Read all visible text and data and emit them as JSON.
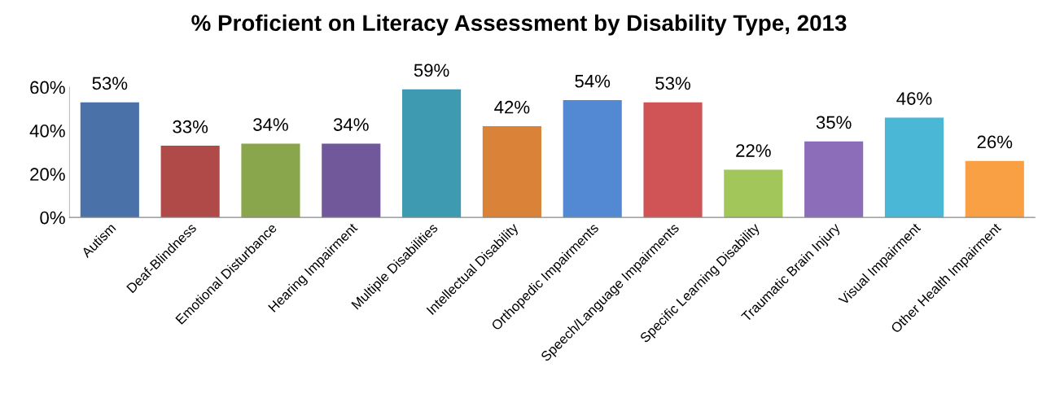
{
  "chart_data": {
    "type": "bar",
    "title": "% Proficient on Literacy Assessment by Disability Type, 2013",
    "categories": [
      "Autism",
      "Deaf-Blindness",
      "Emotional Disturbance",
      "Hearing Impairment",
      "Multiple Disabilities",
      "Intellectual Disability",
      "Orthopedic Impairments",
      "Speech/Language Impairments",
      "Specific Learning Disability",
      "Traumatic Brain Injury",
      "Visual Impairment",
      "Other Health Impairment"
    ],
    "values": [
      53,
      33,
      34,
      34,
      59,
      42,
      54,
      53,
      22,
      35,
      46,
      26
    ],
    "value_labels": [
      "53%",
      "33%",
      "34%",
      "34%",
      "59%",
      "42%",
      "54%",
      "53%",
      "22%",
      "35%",
      "46%",
      "26%"
    ],
    "colors": [
      "#4a72a8",
      "#b04a48",
      "#8aa64c",
      "#71589a",
      "#3d9ab0",
      "#da8238",
      "#5289d2",
      "#d05456",
      "#a3c65a",
      "#8c6dba",
      "#4ab7d6",
      "#f99f44"
    ],
    "ylim": [
      0,
      60
    ],
    "yticks": [
      {
        "value": 0,
        "label": "0%"
      },
      {
        "value": 20,
        "label": "20%"
      },
      {
        "value": 40,
        "label": "40%"
      },
      {
        "value": 60,
        "label": "60%"
      }
    ]
  }
}
